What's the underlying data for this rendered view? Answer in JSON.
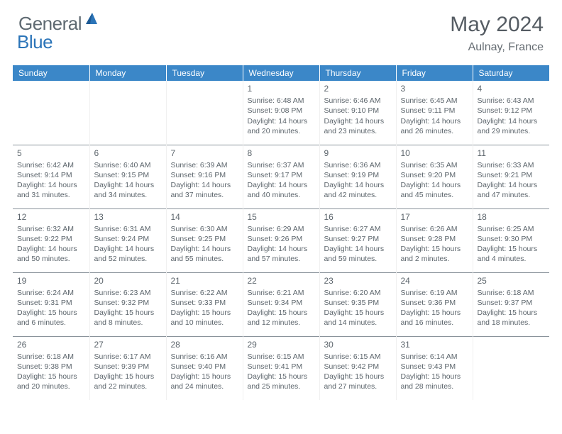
{
  "branding": {
    "logo_general": "General",
    "logo_blue": "Blue",
    "logo_sail_color": "#2b74b8",
    "text_gray": "#5f6a72"
  },
  "title": {
    "month": "May 2024",
    "location": "Aulnay, France"
  },
  "style": {
    "header_bg": "#3b87c8",
    "header_text": "#ffffff",
    "cell_border": "#8a939b",
    "body_text": "#5c656c",
    "font_family": "Arial",
    "daynum_fontsize": 12,
    "cell_fontsize": 10.5,
    "month_fontsize": 30,
    "location_fontsize": 16
  },
  "weekdays": [
    "Sunday",
    "Monday",
    "Tuesday",
    "Wednesday",
    "Thursday",
    "Friday",
    "Saturday"
  ],
  "weeks": [
    [
      null,
      null,
      null,
      {
        "day": "1",
        "sunrise": "6:48 AM",
        "sunset": "9:08 PM",
        "daylight": "14 hours and 20 minutes."
      },
      {
        "day": "2",
        "sunrise": "6:46 AM",
        "sunset": "9:10 PM",
        "daylight": "14 hours and 23 minutes."
      },
      {
        "day": "3",
        "sunrise": "6:45 AM",
        "sunset": "9:11 PM",
        "daylight": "14 hours and 26 minutes."
      },
      {
        "day": "4",
        "sunrise": "6:43 AM",
        "sunset": "9:12 PM",
        "daylight": "14 hours and 29 minutes."
      }
    ],
    [
      {
        "day": "5",
        "sunrise": "6:42 AM",
        "sunset": "9:14 PM",
        "daylight": "14 hours and 31 minutes."
      },
      {
        "day": "6",
        "sunrise": "6:40 AM",
        "sunset": "9:15 PM",
        "daylight": "14 hours and 34 minutes."
      },
      {
        "day": "7",
        "sunrise": "6:39 AM",
        "sunset": "9:16 PM",
        "daylight": "14 hours and 37 minutes."
      },
      {
        "day": "8",
        "sunrise": "6:37 AM",
        "sunset": "9:17 PM",
        "daylight": "14 hours and 40 minutes."
      },
      {
        "day": "9",
        "sunrise": "6:36 AM",
        "sunset": "9:19 PM",
        "daylight": "14 hours and 42 minutes."
      },
      {
        "day": "10",
        "sunrise": "6:35 AM",
        "sunset": "9:20 PM",
        "daylight": "14 hours and 45 minutes."
      },
      {
        "day": "11",
        "sunrise": "6:33 AM",
        "sunset": "9:21 PM",
        "daylight": "14 hours and 47 minutes."
      }
    ],
    [
      {
        "day": "12",
        "sunrise": "6:32 AM",
        "sunset": "9:22 PM",
        "daylight": "14 hours and 50 minutes."
      },
      {
        "day": "13",
        "sunrise": "6:31 AM",
        "sunset": "9:24 PM",
        "daylight": "14 hours and 52 minutes."
      },
      {
        "day": "14",
        "sunrise": "6:30 AM",
        "sunset": "9:25 PM",
        "daylight": "14 hours and 55 minutes."
      },
      {
        "day": "15",
        "sunrise": "6:29 AM",
        "sunset": "9:26 PM",
        "daylight": "14 hours and 57 minutes."
      },
      {
        "day": "16",
        "sunrise": "6:27 AM",
        "sunset": "9:27 PM",
        "daylight": "14 hours and 59 minutes."
      },
      {
        "day": "17",
        "sunrise": "6:26 AM",
        "sunset": "9:28 PM",
        "daylight": "15 hours and 2 minutes."
      },
      {
        "day": "18",
        "sunrise": "6:25 AM",
        "sunset": "9:30 PM",
        "daylight": "15 hours and 4 minutes."
      }
    ],
    [
      {
        "day": "19",
        "sunrise": "6:24 AM",
        "sunset": "9:31 PM",
        "daylight": "15 hours and 6 minutes."
      },
      {
        "day": "20",
        "sunrise": "6:23 AM",
        "sunset": "9:32 PM",
        "daylight": "15 hours and 8 minutes."
      },
      {
        "day": "21",
        "sunrise": "6:22 AM",
        "sunset": "9:33 PM",
        "daylight": "15 hours and 10 minutes."
      },
      {
        "day": "22",
        "sunrise": "6:21 AM",
        "sunset": "9:34 PM",
        "daylight": "15 hours and 12 minutes."
      },
      {
        "day": "23",
        "sunrise": "6:20 AM",
        "sunset": "9:35 PM",
        "daylight": "15 hours and 14 minutes."
      },
      {
        "day": "24",
        "sunrise": "6:19 AM",
        "sunset": "9:36 PM",
        "daylight": "15 hours and 16 minutes."
      },
      {
        "day": "25",
        "sunrise": "6:18 AM",
        "sunset": "9:37 PM",
        "daylight": "15 hours and 18 minutes."
      }
    ],
    [
      {
        "day": "26",
        "sunrise": "6:18 AM",
        "sunset": "9:38 PM",
        "daylight": "15 hours and 20 minutes."
      },
      {
        "day": "27",
        "sunrise": "6:17 AM",
        "sunset": "9:39 PM",
        "daylight": "15 hours and 22 minutes."
      },
      {
        "day": "28",
        "sunrise": "6:16 AM",
        "sunset": "9:40 PM",
        "daylight": "15 hours and 24 minutes."
      },
      {
        "day": "29",
        "sunrise": "6:15 AM",
        "sunset": "9:41 PM",
        "daylight": "15 hours and 25 minutes."
      },
      {
        "day": "30",
        "sunrise": "6:15 AM",
        "sunset": "9:42 PM",
        "daylight": "15 hours and 27 minutes."
      },
      {
        "day": "31",
        "sunrise": "6:14 AM",
        "sunset": "9:43 PM",
        "daylight": "15 hours and 28 minutes."
      },
      null
    ]
  ],
  "labels": {
    "sunrise": "Sunrise: ",
    "sunset": "Sunset: ",
    "daylight": "Daylight: "
  }
}
